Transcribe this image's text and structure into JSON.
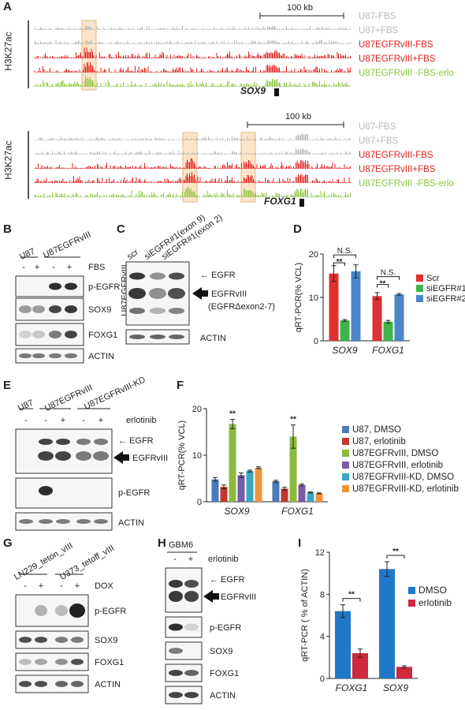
{
  "panels": {
    "A": {
      "label": "A",
      "ylabel": "H3K27ac",
      "scale_label": "100 kb",
      "top_gene": "SOX9",
      "bottom_gene": "FOXG1",
      "tracks": [
        {
          "name": "U87-FBS",
          "color": "#b8b8b8"
        },
        {
          "name": "U87+FBS",
          "color": "#b8b8b8"
        },
        {
          "name": "U87EGFRvIII-FBS",
          "color": "#e02020"
        },
        {
          "name": "U87EGFRvIII+FBS",
          "color": "#e02020"
        },
        {
          "name": "U87EGFRvIII -FBS-erlo",
          "color": "#8cc63f"
        }
      ]
    },
    "B": {
      "label": "B",
      "groups": [
        "U87",
        "U87EGFRvIII"
      ],
      "treatment": "FBS",
      "signs": [
        "-",
        "+",
        "-",
        "+"
      ],
      "bands": [
        "p-EGFR",
        "SOX9",
        "FOXG1",
        "ACTIN"
      ]
    },
    "C": {
      "label": "C",
      "lanes": [
        "scr",
        "siEGFR#1(exon 9)",
        "siEGFR#1(exon 2)"
      ],
      "side_label": "U87EGFRvIII",
      "egfr": "EGFR",
      "egfrviii": "EGFRvIII",
      "egfr_delta": "(EGFRΔexon2-7)",
      "actin": "ACTIN"
    },
    "D": {
      "label": "D",
      "ylabel": "qRT-PCR(% VCL)",
      "ns": "N.S.",
      "sig": "**"
    },
    "E": {
      "label": "E",
      "groups": [
        "U87",
        "U87EGFRvIII",
        "U87EGFRvIII-KD"
      ],
      "treatment": "erlotinib",
      "signs": [
        "-",
        "-",
        "+",
        "-",
        "+"
      ],
      "egfr": "EGFR",
      "egfrviii": "EGFRvIII",
      "pegfr": "p-EGFR",
      "actin": "ACTIN"
    },
    "F": {
      "label": "F",
      "ylabel": "qRT-PCR(% VCL)",
      "sig": "**"
    },
    "G": {
      "label": "G",
      "groups": [
        "LN229_teton_vIII",
        "U373_tetoff_vIII"
      ],
      "treatment": "DOX",
      "signs": [
        "-",
        "+",
        "-",
        "+"
      ],
      "bands": [
        "p-EGFR",
        "SOX9",
        "FOXG1",
        "ACTIN"
      ]
    },
    "H": {
      "label": "H",
      "group": "GBM6",
      "treatment": "erlotinib",
      "signs": [
        "-",
        "+"
      ],
      "egfr": "EGFR",
      "egfrviii": "EGFRvIII",
      "bands": [
        "p-EGFR",
        "SOX9",
        "FOXG1",
        "ACTIN"
      ]
    },
    "I": {
      "label": "I",
      "ylabel": "qRT-PCR ( % of ACTIN)",
      "sig": "**"
    }
  },
  "chart_data": [
    {
      "panel": "D",
      "type": "bar",
      "categories": [
        "SOX9",
        "FOXG1"
      ],
      "ylim": [
        0,
        20
      ],
      "yticks": [
        0,
        10,
        20
      ],
      "ylabel": "qRT-PCR(% VCL)",
      "legend": "right",
      "series": [
        {
          "name": "Scr",
          "color": "#e03030",
          "values": [
            15.5,
            10.3
          ],
          "errors": [
            1.8,
            0.8
          ]
        },
        {
          "name": "siEGFR#1",
          "color": "#3cb44b",
          "values": [
            4.7,
            4.4
          ],
          "errors": [
            0.2,
            0.3
          ]
        },
        {
          "name": "siEGFR#2",
          "color": "#4a86c8",
          "values": [
            16.0,
            10.7
          ],
          "errors": [
            1.5,
            0.2
          ]
        }
      ]
    },
    {
      "panel": "F",
      "type": "bar",
      "categories": [
        "SOX9",
        "FOXG1"
      ],
      "ylim": [
        0,
        20
      ],
      "yticks": [
        0,
        10,
        20
      ],
      "ylabel": "qRT-PCR(% VCL)",
      "legend": "right",
      "series": [
        {
          "name": "U87, DMSO",
          "color": "#4a7ab8",
          "values": [
            4.8,
            4.4
          ],
          "errors": [
            0.4,
            0.2
          ]
        },
        {
          "name": "U87, erlotinib",
          "color": "#c0392b",
          "values": [
            3.2,
            2.8
          ],
          "errors": [
            0.4,
            0.3
          ]
        },
        {
          "name": "U87EGFRvIII, DMSO",
          "color": "#8bbb3c",
          "values": [
            16.7,
            14.0
          ],
          "errors": [
            1.0,
            2.5
          ]
        },
        {
          "name": "U87EGFRvIII, erlotinib",
          "color": "#7b5aa6",
          "values": [
            5.7,
            3.6
          ],
          "errors": [
            0.5,
            0.2
          ]
        },
        {
          "name": "U87EGFRvIII-KD, DMSO",
          "color": "#3aa8c0",
          "values": [
            6.6,
            2.0
          ],
          "errors": [
            0.2,
            0.1
          ]
        },
        {
          "name": "U87EGFRvIII-KD, erlotinib",
          "color": "#f0943a",
          "values": [
            7.3,
            1.8
          ],
          "errors": [
            0.2,
            0.1
          ]
        }
      ]
    },
    {
      "panel": "I",
      "type": "bar",
      "categories": [
        "FOXG1",
        "SOX9"
      ],
      "ylim": [
        0,
        12
      ],
      "yticks": [
        0,
        4,
        8,
        12
      ],
      "ylabel": "qRT-PCR ( % of ACTIN)",
      "legend": "right",
      "series": [
        {
          "name": "DMSO",
          "color": "#1f78c8",
          "values": [
            6.4,
            10.4
          ],
          "errors": [
            0.6,
            0.7
          ]
        },
        {
          "name": "erlotinib",
          "color": "#d0283c",
          "values": [
            2.4,
            1.1
          ],
          "errors": [
            0.4,
            0.1
          ]
        }
      ]
    }
  ]
}
